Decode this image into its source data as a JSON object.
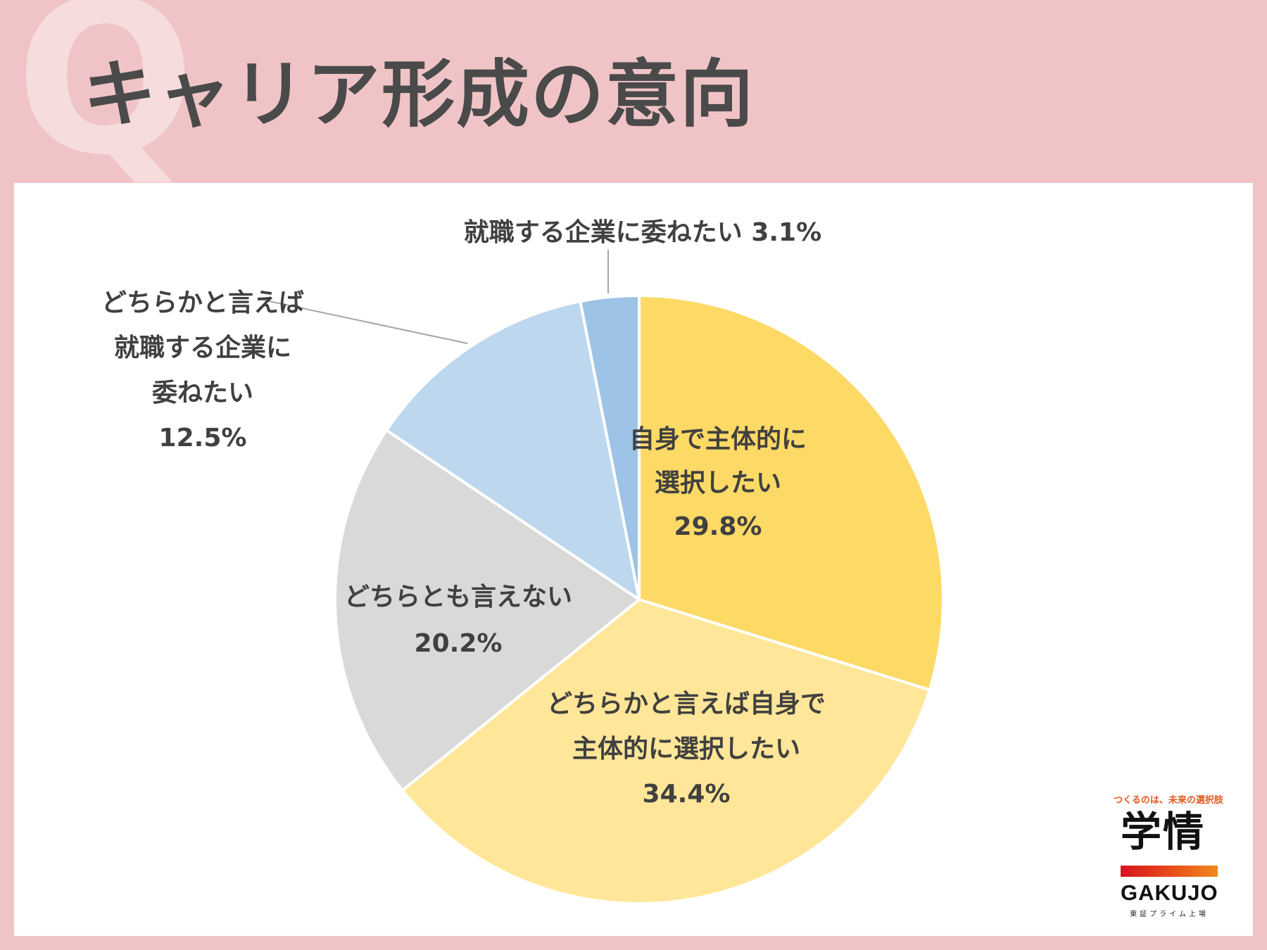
{
  "header": {
    "q_mark": "Q",
    "title": "キャリア形成の意向"
  },
  "colors": {
    "background": "#f0c4c6",
    "q_mark": "#f6dcdd",
    "title": "#4a4a4a",
    "panel": "#ffffff",
    "label_text": "#404040"
  },
  "chart_data": {
    "type": "pie",
    "start_angle_deg": 0,
    "direction": "clockwise",
    "slices": [
      {
        "label_lines": [
          "自身で主体的に",
          "選択したい"
        ],
        "value_label": "29.8%",
        "value": 29.8,
        "color": "#fdd966",
        "label_placement": "inside"
      },
      {
        "label_lines": [
          "どちらかと言えば自身で",
          "主体的に選択したい"
        ],
        "value_label": "34.4%",
        "value": 34.4,
        "color": "#ffe698",
        "label_placement": "inside"
      },
      {
        "label_lines": [
          "どちらとも言えない"
        ],
        "value_label": "20.2%",
        "value": 20.2,
        "color": "#d9d9d9",
        "label_placement": "inside"
      },
      {
        "label_lines": [
          "どちらかと言えば",
          "就職する企業に",
          "委ねたい"
        ],
        "value_label": "12.5%",
        "value": 12.5,
        "color": "#bdd7ee",
        "label_placement": "outside-left"
      },
      {
        "label_lines": [
          "就職する企業に委ねたい 3.1%"
        ],
        "value_label": "",
        "value": 3.1,
        "color": "#9dc3e6",
        "label_placement": "outside-top"
      }
    ]
  },
  "logo": {
    "tagline": "つくるのは、未来の選択肢",
    "kanji": "学情",
    "latin": "GAKUJO",
    "sub": "東証プライム上場"
  }
}
